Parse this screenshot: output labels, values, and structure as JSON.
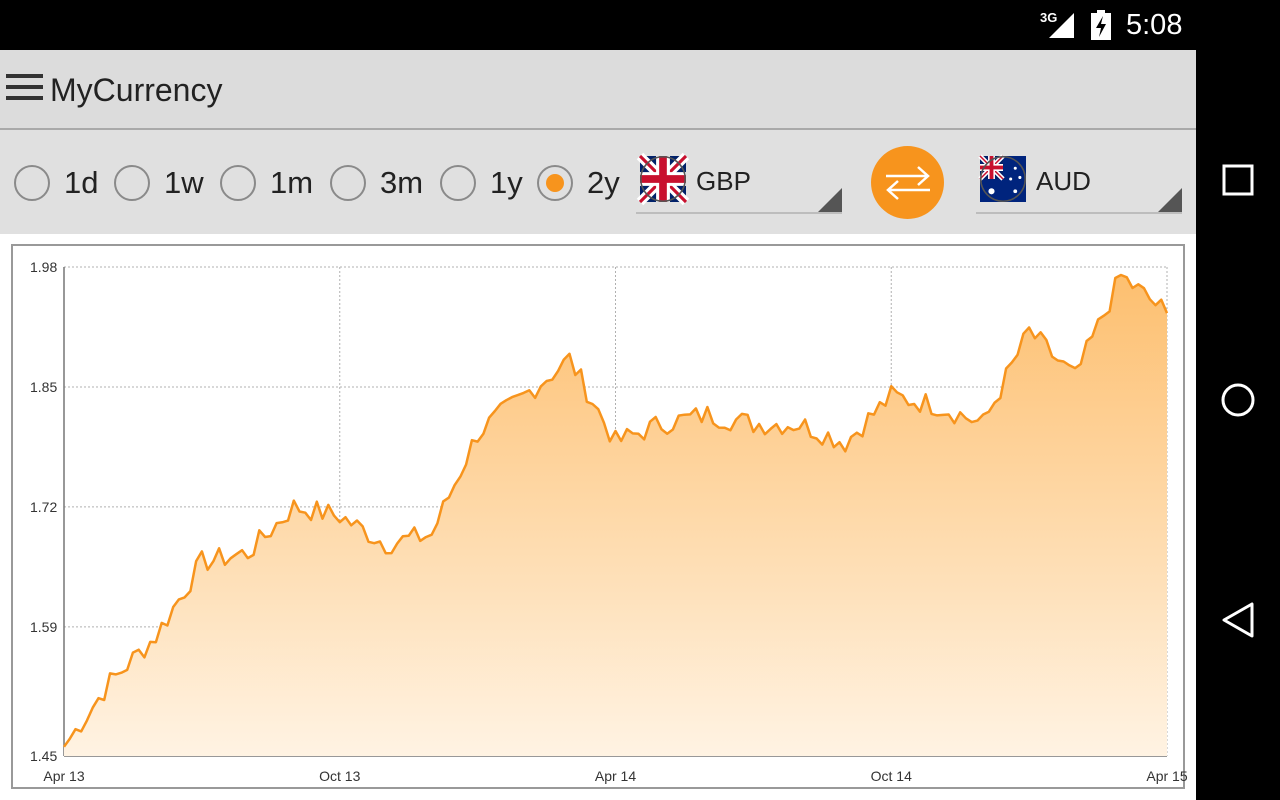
{
  "status_bar": {
    "network": "3G",
    "time": "5:08"
  },
  "app": {
    "title": "MyCurrency"
  },
  "periods": [
    {
      "label": "1d",
      "checked": false
    },
    {
      "label": "1w",
      "checked": false
    },
    {
      "label": "1m",
      "checked": false
    },
    {
      "label": "3m",
      "checked": false
    },
    {
      "label": "1y",
      "checked": false
    },
    {
      "label": "2y",
      "checked": true
    }
  ],
  "from_currency": {
    "code": "GBP",
    "flag_icon": "uk-flag-icon"
  },
  "to_currency": {
    "code": "AUD",
    "flag_icon": "australia-flag-icon"
  },
  "colors": {
    "accent": "#f7941d",
    "area_top": "#fdbf6f",
    "area_bottom": "#fff3e3"
  },
  "chart_data": {
    "type": "area",
    "title": "",
    "xlabel": "",
    "ylabel": "",
    "x_ticks": [
      "Apr 13",
      "Oct 13",
      "Apr 14",
      "Oct 14",
      "Apr 15"
    ],
    "y_ticks": [
      "1.98",
      "1.85",
      "1.72",
      "1.59",
      "1.45"
    ],
    "ylim": [
      1.45,
      1.98
    ],
    "xlim": [
      "Apr 13",
      "Apr 15"
    ],
    "grid": true,
    "series": [
      {
        "x": [
          "Apr 13",
          "May 13",
          "Jun 13",
          "Jul 13",
          "Aug 13",
          "Sep 13",
          "Oct 13",
          "Nov 13",
          "Dec 13",
          "Jan 14",
          "Feb 14",
          "Mar 14",
          "Apr 14",
          "May 14",
          "Jun 14",
          "Jul 14",
          "Aug 14",
          "Sep 14",
          "Oct 14",
          "Nov 14",
          "Dec 14",
          "Jan 15",
          "Feb 15",
          "Mar 15",
          "Apr 15"
        ],
        "values": [
          1.46,
          1.53,
          1.58,
          1.66,
          1.67,
          1.72,
          1.71,
          1.68,
          1.69,
          1.8,
          1.84,
          1.88,
          1.79,
          1.81,
          1.82,
          1.81,
          1.81,
          1.79,
          1.84,
          1.83,
          1.81,
          1.91,
          1.86,
          1.97,
          1.93
        ]
      }
    ]
  }
}
